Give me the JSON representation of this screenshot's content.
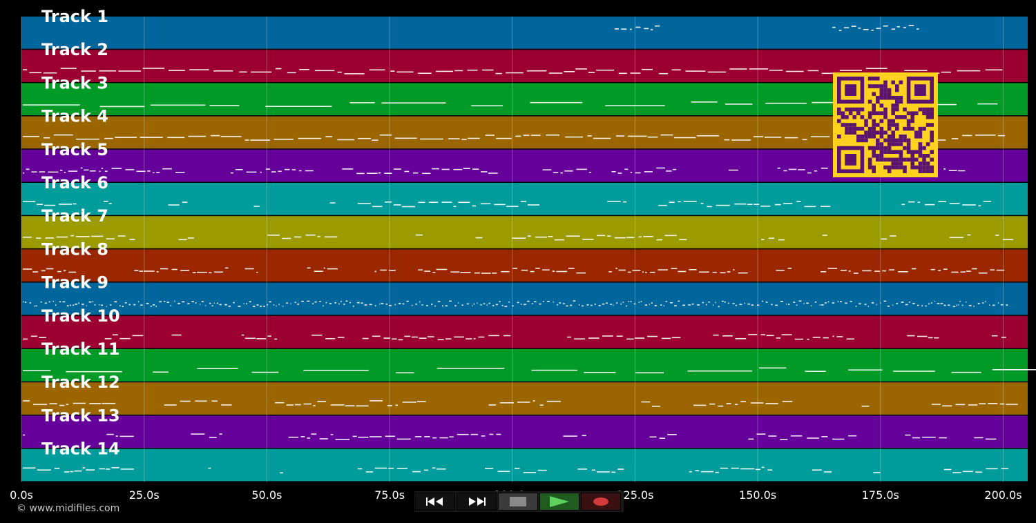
{
  "tracks": [
    {
      "label": "Track 1",
      "color": "#00669b",
      "pattern": "sparse-top"
    },
    {
      "label": "Track 2",
      "color": "#9c0033",
      "pattern": "dense"
    },
    {
      "label": "Track 3",
      "color": "#009a27",
      "pattern": "long"
    },
    {
      "label": "Track 4",
      "color": "#9b6600",
      "pattern": "dense"
    },
    {
      "label": "Track 5",
      "color": "#66009b",
      "pattern": "phrase"
    },
    {
      "label": "Track 6",
      "color": "#009b9b",
      "pattern": "phrase-light"
    },
    {
      "label": "Track 7",
      "color": "#9b9b00",
      "pattern": "phrase-light"
    },
    {
      "label": "Track 8",
      "color": "#9b2700",
      "pattern": "phrase"
    },
    {
      "label": "Track 9",
      "color": "#00669b",
      "pattern": "dots"
    },
    {
      "label": "Track 10",
      "color": "#9c0033",
      "pattern": "phrase"
    },
    {
      "label": "Track 11",
      "color": "#009a27",
      "pattern": "long"
    },
    {
      "label": "Track 12",
      "color": "#9b6600",
      "pattern": "phrase-light"
    },
    {
      "label": "Track 13",
      "color": "#66009b",
      "pattern": "phrase-light"
    },
    {
      "label": "Track 14",
      "color": "#009b9b",
      "pattern": "phrase-light"
    }
  ],
  "timeline": {
    "start_seconds": 0,
    "end_seconds": 205,
    "ticks": [
      {
        "value": 0,
        "label": "0.0s"
      },
      {
        "value": 25,
        "label": "25.0s"
      },
      {
        "value": 50,
        "label": "50.0s"
      },
      {
        "value": 75,
        "label": "75.0s"
      },
      {
        "value": 100,
        "label": "100.0s"
      },
      {
        "value": 125,
        "label": "125.0s"
      },
      {
        "value": 150,
        "label": "150.0s"
      },
      {
        "value": 175,
        "label": "175.0s"
      },
      {
        "value": 200,
        "label": "200.0s"
      }
    ]
  },
  "transport": {
    "rewind_icon": "rewind-icon",
    "forward_icon": "fast-forward-icon",
    "stop_icon": "stop-icon",
    "play_icon": "play-icon",
    "record_icon": "record-icon",
    "play_color": "#5fcf5f",
    "record_color": "#d33a3a"
  },
  "copyright": "© www.midifiles.com",
  "qr": {
    "icon": "qr-code-icon",
    "fg": "#5a1470",
    "bg": "#ffd21f"
  }
}
